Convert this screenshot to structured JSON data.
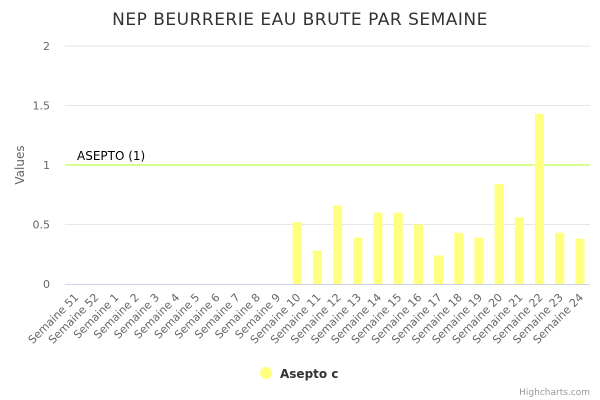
{
  "chart_data": {
    "type": "bar",
    "title": "NEP BEURRERIE EAU BRUTE PAR SEMAINE",
    "ylabel": "Values",
    "xlabel": "",
    "ylim": [
      0,
      2
    ],
    "yticks": [
      0,
      0.5,
      1,
      1.5,
      2
    ],
    "grid": true,
    "categories": [
      "Semaine 51",
      "Semaine 52",
      "Semaine 1",
      "Semaine 2",
      "Semaine 3",
      "Semaine 4",
      "Semaine 5",
      "Semaine 6",
      "Semaine 7",
      "Semaine 8",
      "Semaine 9",
      "Semaine 10",
      "Semaine 11",
      "Semaine 12",
      "Semaine 13",
      "Semaine 14",
      "Semaine 15",
      "Semaine 16",
      "Semaine 17",
      "Semaine 18",
      "Semaine 19",
      "Semaine 20",
      "Semaine 21",
      "Semaine 22",
      "Semaine 23",
      "Semaine 24"
    ],
    "series": [
      {
        "name": "Asepto c",
        "color": "#ffff80",
        "values": [
          null,
          null,
          null,
          null,
          null,
          null,
          null,
          null,
          null,
          null,
          null,
          0.52,
          0.28,
          0.66,
          0.39,
          0.6,
          0.6,
          0.5,
          0.24,
          0.43,
          0.39,
          0.84,
          0.56,
          1.43,
          0.43,
          0.38
        ]
      }
    ],
    "plot_line": {
      "value": 1,
      "label": "ASEPTO (1)",
      "color": "#ccff66"
    },
    "legend_position": "bottom-center",
    "credits": "Highcharts.com"
  }
}
